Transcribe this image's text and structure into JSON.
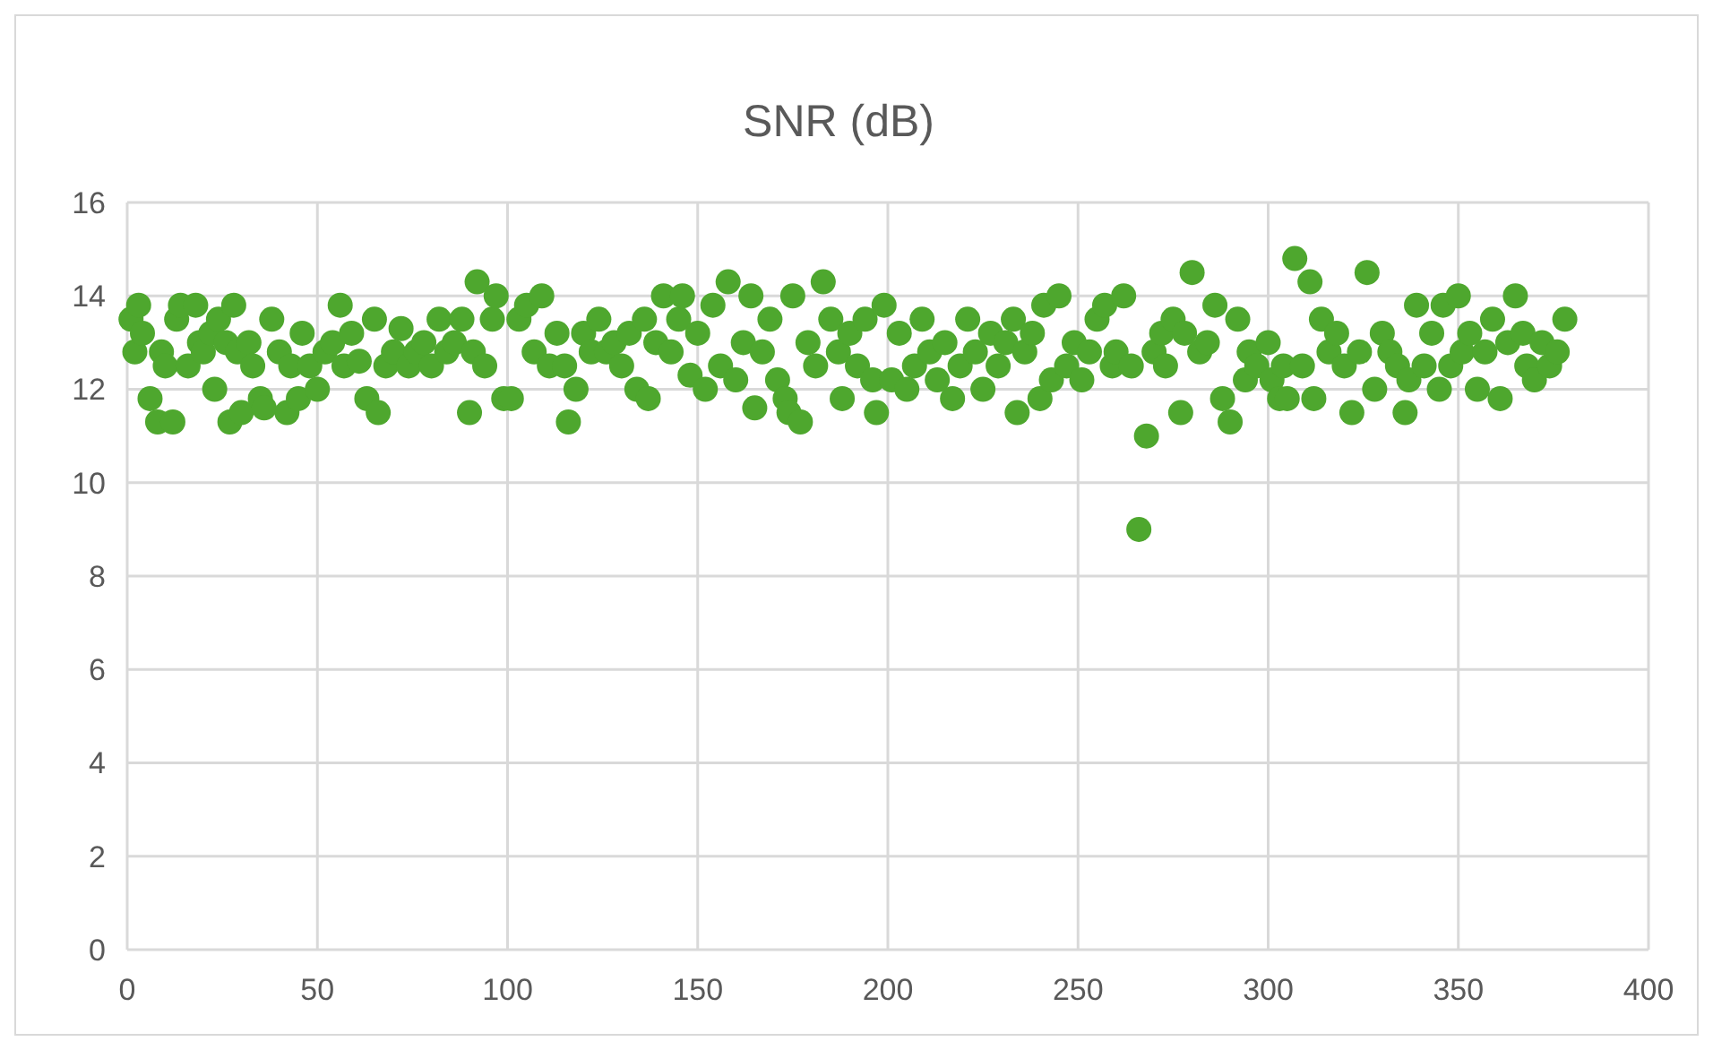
{
  "chart_data": {
    "type": "scatter",
    "title": "SNR (dB)",
    "xlim": [
      0,
      400
    ],
    "xticks": [
      0,
      50,
      100,
      150,
      200,
      250,
      300,
      350,
      400
    ],
    "ylim": [
      0,
      16
    ],
    "yticks": [
      0,
      2,
      4,
      6,
      8,
      10,
      12,
      14,
      16
    ],
    "grid": true,
    "marker": "circle",
    "series": [
      {
        "color": "#4ea72e",
        "x": [
          1,
          2,
          3,
          4,
          6,
          8,
          9,
          10,
          12,
          13,
          14,
          16,
          18,
          19,
          20,
          22,
          23,
          24,
          26,
          27,
          28,
          29,
          30,
          32,
          33,
          35,
          36,
          38,
          40,
          42,
          43,
          45,
          46,
          48,
          50,
          52,
          54,
          56,
          57,
          59,
          61,
          63,
          65,
          66,
          68,
          70,
          72,
          74,
          76,
          78,
          80,
          82,
          84,
          86,
          88,
          90,
          91,
          92,
          94,
          96,
          97,
          99,
          101,
          103,
          105,
          107,
          109,
          111,
          113,
          115,
          116,
          118,
          120,
          122,
          124,
          126,
          128,
          130,
          132,
          134,
          136,
          137,
          139,
          141,
          143,
          145,
          146,
          148,
          150,
          152,
          154,
          156,
          158,
          160,
          162,
          164,
          165,
          167,
          169,
          171,
          173,
          174,
          175,
          177,
          179,
          181,
          183,
          185,
          187,
          188,
          190,
          192,
          194,
          196,
          197,
          199,
          201,
          203,
          205,
          207,
          209,
          211,
          213,
          215,
          217,
          219,
          221,
          223,
          225,
          227,
          229,
          231,
          233,
          234,
          236,
          238,
          240,
          241,
          243,
          245,
          247,
          249,
          251,
          253,
          255,
          257,
          259,
          260,
          262,
          264,
          266,
          268,
          270,
          272,
          273,
          275,
          277,
          278,
          280,
          282,
          284,
          286,
          288,
          290,
          292,
          294,
          295,
          297,
          300,
          301,
          303,
          304,
          305,
          307,
          309,
          311,
          312,
          314,
          316,
          318,
          320,
          322,
          324,
          326,
          328,
          330,
          332,
          334,
          336,
          337,
          339,
          341,
          343,
          345,
          346,
          348,
          350,
          351,
          353,
          355,
          357,
          359,
          361,
          363,
          365,
          367,
          368,
          370,
          372,
          374,
          376,
          378
        ],
        "values": [
          13.5,
          12.8,
          13.8,
          13.2,
          11.8,
          11.3,
          12.8,
          12.5,
          11.3,
          13.5,
          13.8,
          12.5,
          13.8,
          13,
          12.8,
          13.2,
          12,
          13.5,
          13,
          11.3,
          13.8,
          12.8,
          11.5,
          13,
          12.5,
          11.8,
          11.6,
          13.5,
          12.8,
          11.5,
          12.5,
          11.8,
          13.2,
          12.5,
          12,
          12.8,
          13,
          13.8,
          12.5,
          13.2,
          12.6,
          11.8,
          13.5,
          11.5,
          12.5,
          12.8,
          13.3,
          12.5,
          12.8,
          13,
          12.5,
          13.5,
          12.8,
          13,
          13.5,
          11.5,
          12.8,
          14.3,
          12.5,
          13.5,
          14,
          11.8,
          11.8,
          13.5,
          13.8,
          12.8,
          14,
          12.5,
          13.2,
          12.5,
          11.3,
          12,
          13.2,
          12.8,
          13.5,
          12.8,
          13,
          12.5,
          13.2,
          12,
          13.5,
          11.8,
          13,
          14,
          12.8,
          13.5,
          14,
          12.3,
          13.2,
          12,
          13.8,
          12.5,
          14.3,
          12.2,
          13,
          14,
          11.6,
          12.8,
          13.5,
          12.2,
          11.8,
          11.5,
          14,
          11.3,
          13,
          12.5,
          14.3,
          13.5,
          12.8,
          11.8,
          13.2,
          12.5,
          13.5,
          12.2,
          11.5,
          13.8,
          12.2,
          13.2,
          12,
          12.5,
          13.5,
          12.8,
          12.2,
          13,
          11.8,
          12.5,
          13.5,
          12.8,
          12,
          13.2,
          12.5,
          13,
          13.5,
          11.5,
          12.8,
          13.2,
          11.8,
          13.8,
          12.2,
          14,
          12.5,
          13,
          12.2,
          12.8,
          13.5,
          13.8,
          12.5,
          12.8,
          14,
          12.5,
          9,
          11,
          12.8,
          13.2,
          12.5,
          13.5,
          11.5,
          13.2,
          14.5,
          12.8,
          13,
          13.8,
          11.8,
          11.3,
          13.5,
          12.2,
          12.8,
          12.5,
          13,
          12.2,
          11.8,
          12.5,
          11.8,
          14.8,
          12.5,
          14.3,
          11.8,
          13.5,
          12.8,
          13.2,
          12.5,
          11.5,
          12.8,
          14.5,
          12,
          13.2,
          12.8,
          12.5,
          11.5,
          12.2,
          13.8,
          12.5,
          13.2,
          12,
          13.8,
          12.5,
          14,
          12.8,
          13.2,
          12,
          12.8,
          13.5,
          11.8,
          13,
          14,
          13.2,
          12.5,
          12.2,
          13,
          12.5,
          12.8,
          13.5
        ]
      }
    ]
  }
}
